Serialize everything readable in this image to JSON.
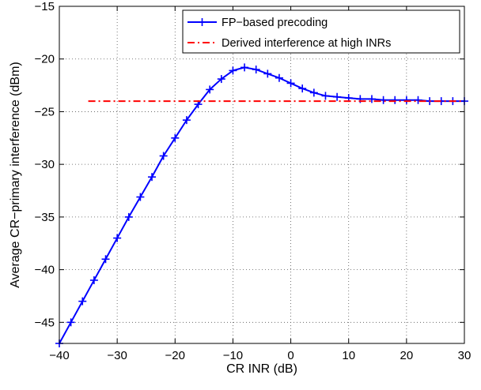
{
  "chart_data": {
    "type": "line",
    "title": "",
    "xlabel": "CR INR (dB)",
    "ylabel": "Average CR−primary interference (dBm)",
    "xlim": [
      -40,
      30
    ],
    "ylim": [
      -47,
      -15
    ],
    "xticks": [
      -40,
      -30,
      -20,
      -10,
      0,
      10,
      20,
      30
    ],
    "xtick_labels": [
      "−40",
      "−30",
      "−20",
      "−10",
      "0",
      "10",
      "20",
      "30"
    ],
    "yticks": [
      -45,
      -40,
      -35,
      -30,
      -25,
      -20,
      -15
    ],
    "ytick_labels": [
      "−45",
      "−40",
      "−35",
      "−30",
      "−25",
      "−20",
      "−15"
    ],
    "grid": true,
    "legend_position": "top-right",
    "series": [
      {
        "name": "FP−based precoding",
        "color": "#0000ff",
        "style": "solid",
        "marker": "plus",
        "x": [
          -40,
          -38,
          -36,
          -34,
          -32,
          -30,
          -28,
          -26,
          -24,
          -22,
          -20,
          -18,
          -16,
          -14,
          -12,
          -10,
          -8,
          -6,
          -4,
          -2,
          0,
          2,
          4,
          6,
          8,
          10,
          12,
          14,
          16,
          18,
          20,
          22,
          24,
          26,
          28,
          30
        ],
        "y": [
          -47,
          -45,
          -43,
          -41,
          -39,
          -37,
          -35,
          -33.1,
          -31.2,
          -29.2,
          -27.5,
          -25.8,
          -24.3,
          -22.9,
          -21.9,
          -21.1,
          -20.8,
          -21.0,
          -21.4,
          -21.8,
          -22.3,
          -22.8,
          -23.2,
          -23.5,
          -23.6,
          -23.7,
          -23.8,
          -23.8,
          -23.9,
          -23.9,
          -23.9,
          -23.9,
          -24.0,
          -24.0,
          -24.0,
          -24.0
        ]
      },
      {
        "name": "Derived interference at high INRs",
        "color": "#ff0000",
        "style": "dashdot",
        "marker": "none",
        "x": [
          -35,
          30
        ],
        "y": [
          -24,
          -24
        ]
      }
    ]
  }
}
